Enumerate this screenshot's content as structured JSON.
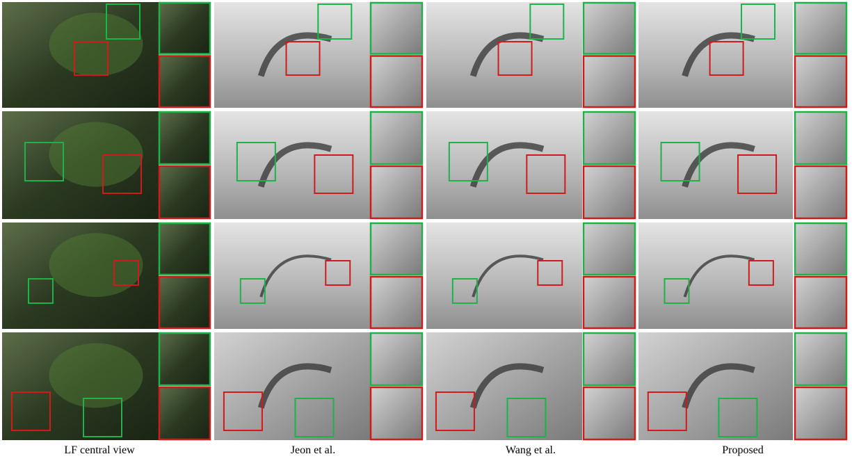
{
  "captions": [
    "LF central view",
    "Jeon et al.",
    "Wang et al.",
    "Proposed"
  ]
}
